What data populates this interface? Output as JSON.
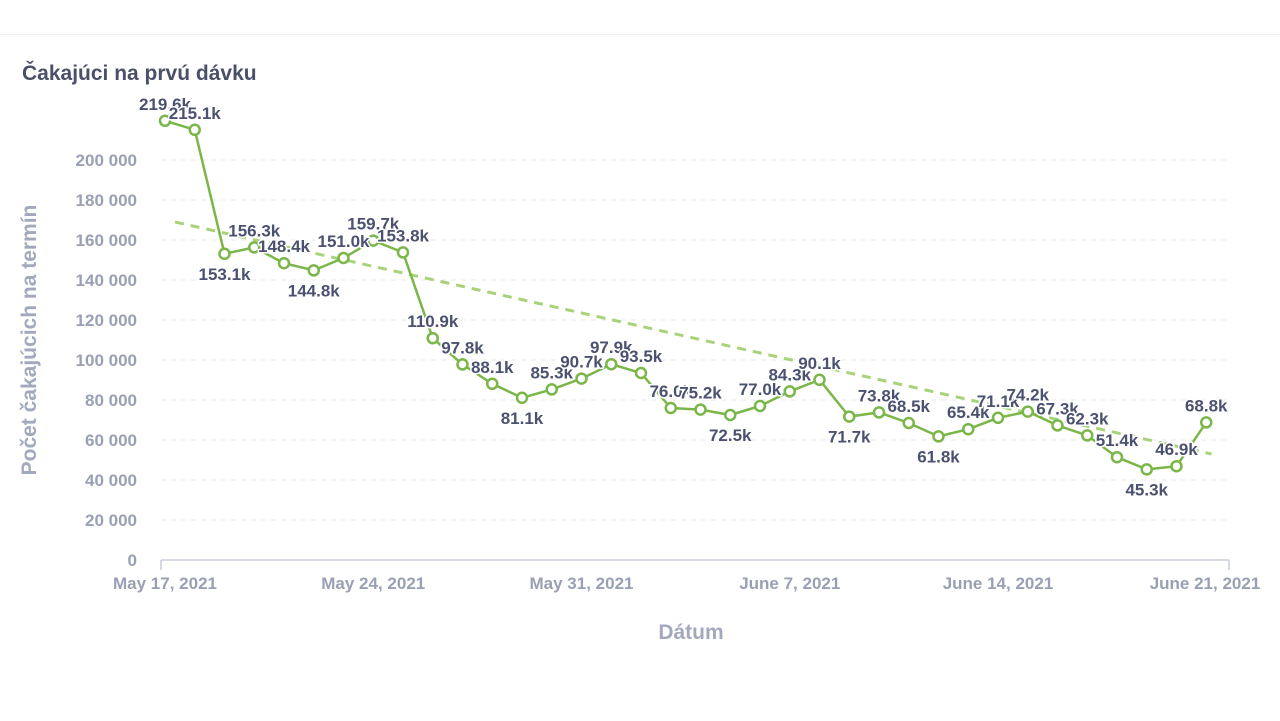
{
  "chart_data": {
    "type": "line",
    "title": "Čakajúci na prvú dávku",
    "xlabel": "Dátum",
    "ylabel": "Počet čakajúcich na termín",
    "ylim": [
      0,
      220000
    ],
    "yticks": [
      0,
      20000,
      40000,
      60000,
      80000,
      100000,
      120000,
      140000,
      160000,
      180000,
      200000
    ],
    "ytick_labels": [
      "0",
      "20 000",
      "40 000",
      "60 000",
      "80 000",
      "100 000",
      "120 000",
      "140 000",
      "160 000",
      "180 000",
      "200 000"
    ],
    "x_tick_labels": [
      "May 17, 2021",
      "May 24, 2021",
      "May 31, 2021",
      "June 7, 2021",
      "June 14, 2021",
      "June 21, 2021"
    ],
    "x": [
      "2021-05-17",
      "2021-05-18",
      "2021-05-19",
      "2021-05-20",
      "2021-05-21",
      "2021-05-22",
      "2021-05-23",
      "2021-05-24",
      "2021-05-25",
      "2021-05-26",
      "2021-05-27",
      "2021-05-28",
      "2021-05-29",
      "2021-05-30",
      "2021-05-31",
      "2021-06-01",
      "2021-06-02",
      "2021-06-03",
      "2021-06-04",
      "2021-06-05",
      "2021-06-06",
      "2021-06-07",
      "2021-06-08",
      "2021-06-09",
      "2021-06-10",
      "2021-06-11",
      "2021-06-12",
      "2021-06-13",
      "2021-06-14",
      "2021-06-15",
      "2021-06-16",
      "2021-06-17",
      "2021-06-18",
      "2021-06-19",
      "2021-06-20",
      "2021-06-21"
    ],
    "grid": true,
    "series": [
      {
        "color": "#7ab648",
        "values": [
          219600,
          215100,
          153100,
          156300,
          148400,
          144800,
          151000,
          159700,
          153800,
          110900,
          97800,
          88100,
          81100,
          85300,
          90700,
          97900,
          93500,
          76000,
          75200,
          72500,
          77000,
          84300,
          90100,
          71700,
          73800,
          68500,
          61800,
          65400,
          71100,
          74200,
          67300,
          62300,
          51400,
          45300,
          46900,
          68800
        ],
        "labels": [
          "219.6k",
          "215.1k",
          "153.1k",
          "156.3k",
          "148.4k",
          "144.8k",
          "151.0k",
          "159.7k",
          "153.8k",
          "110.9k",
          "97.8k",
          "88.1k",
          "81.1k",
          "85.3k",
          "90.7k",
          "97.9k",
          "93.5k",
          "76.0k",
          "75.2k",
          "72.5k",
          "77.0k",
          "84.3k",
          "90.1k",
          "71.7k",
          "73.8k",
          "68.5k",
          "61.8k",
          "65.4k",
          "71.1k",
          "74.2k",
          "67.3k",
          "62.3k",
          "51.4k",
          "45.3k",
          "46.9k",
          "68.8k"
        ]
      }
    ],
    "trendline": {
      "style": "dashed",
      "color": "#a8d37a",
      "from": {
        "x": "2021-05-17",
        "y": 169000
      },
      "to": {
        "x": "2021-06-20",
        "y": 49000
      }
    }
  }
}
